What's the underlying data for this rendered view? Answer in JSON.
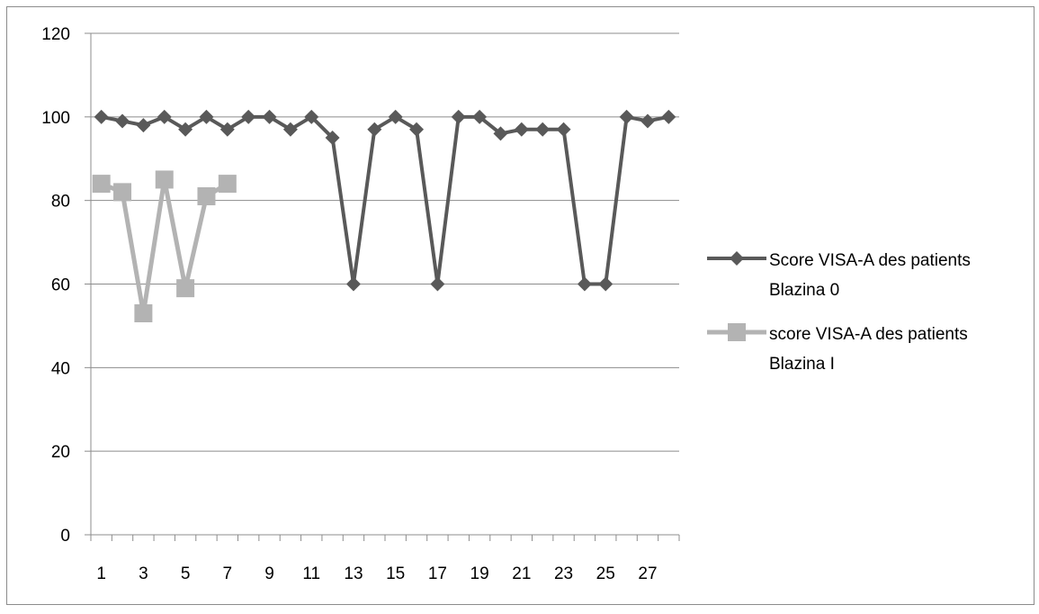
{
  "chart_data": {
    "type": "line",
    "title": "",
    "xlabel": "",
    "ylabel": "",
    "ylim": [
      0,
      120
    ],
    "y_ticks": [
      "0",
      "20",
      "40",
      "60",
      "80",
      "100",
      "120"
    ],
    "x_categories": [
      1,
      2,
      3,
      4,
      5,
      6,
      7,
      8,
      9,
      10,
      11,
      12,
      13,
      14,
      15,
      16,
      17,
      18,
      19,
      20,
      21,
      22,
      23,
      24,
      25,
      26,
      27,
      28
    ],
    "x_tick_labels": [
      "1",
      "3",
      "5",
      "7",
      "9",
      "11",
      "13",
      "15",
      "17",
      "19",
      "21",
      "23",
      "25",
      "27"
    ],
    "grid": "horizontal",
    "legend_position": "right",
    "series": [
      {
        "name": "Score VISA-A des patients Blazina 0",
        "legend_lines": [
          "Score VISA-A des patients",
          "Blazina 0"
        ],
        "color": "#595959",
        "marker": "diamond",
        "values": [
          100,
          99,
          98,
          100,
          97,
          100,
          97,
          100,
          100,
          97,
          100,
          95,
          60,
          97,
          100,
          97,
          60,
          100,
          100,
          96,
          97,
          97,
          97,
          60,
          60,
          100,
          99,
          100
        ]
      },
      {
        "name": "score VISA-A des patients Blazina I",
        "legend_lines": [
          "score VISA-A des patients",
          "Blazina I"
        ],
        "color": "#b3b3b3",
        "marker": "square",
        "values": [
          84,
          82,
          53,
          85,
          59,
          81,
          84
        ]
      }
    ]
  }
}
